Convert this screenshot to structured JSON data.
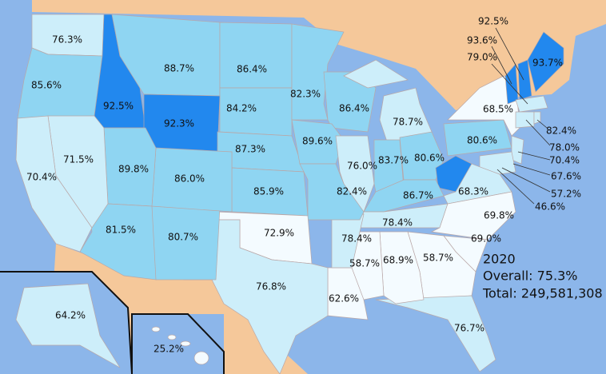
{
  "map": {
    "labels": [
      "76.3%",
      "85.6%",
      "92.5%",
      "88.7%",
      "86.4%",
      "82.3%",
      "86.4%",
      "78.7%",
      "84.2%",
      "92.3%",
      "87.3%",
      "89.6%",
      "76.0%",
      "83.7%",
      "80.6%",
      "80.6%",
      "68.5%",
      "93.7%",
      "92.5%",
      "93.6%",
      "79.0%",
      "82.4%",
      "78.0%",
      "70.4%",
      "67.6%",
      "57.2%",
      "46.6%",
      "68.3%",
      "69.8%",
      "69.0%",
      "58.7%",
      "76.7%",
      "68.9%",
      "58.7%",
      "62.6%",
      "78.4%",
      "86.7%",
      "78.4%",
      "82.4%",
      "85.9%",
      "72.9%",
      "76.8%",
      "80.7%",
      "81.5%",
      "86.0%",
      "89.8%",
      "71.5%",
      "70.4%",
      "64.2%",
      "25.2%"
    ],
    "legend": {
      "year": "2020",
      "overall": "Overall: 75.3%",
      "total": "Total: 249,581,308"
    }
  }
}
